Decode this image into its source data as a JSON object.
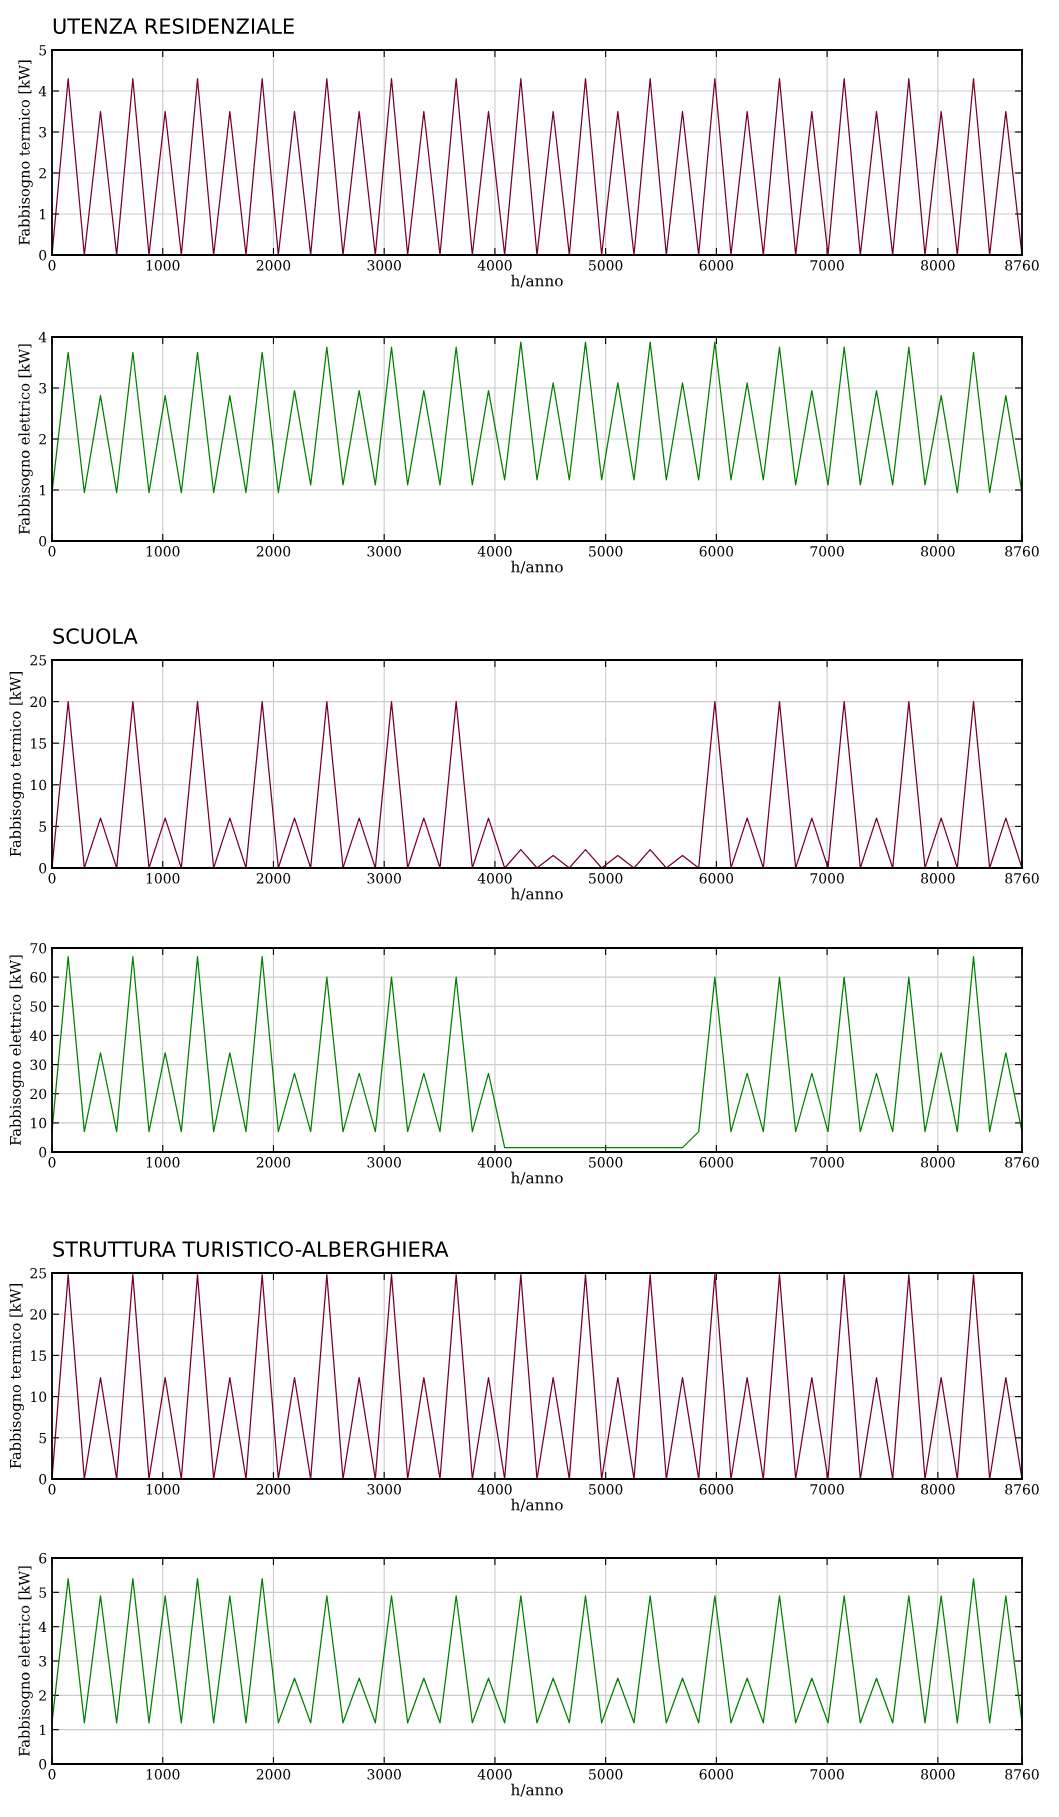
{
  "chart_data": [
    {
      "type": "line",
      "title": "UTENZA RESIDENZIALE",
      "xlabel": "h/anno",
      "ylabel": "Fabbisogno termico [kW]",
      "grid": true,
      "xlim": [
        0,
        8760
      ],
      "xticks": [
        0,
        1000,
        2000,
        3000,
        4000,
        5000,
        6000,
        7000,
        8000,
        8760
      ],
      "ylim": [
        0,
        5
      ],
      "yticks": [
        0,
        1,
        2,
        3,
        4,
        5
      ],
      "x": [
        0,
        146,
        292,
        438,
        584,
        730,
        876,
        1022,
        1168,
        1314,
        1460,
        1606,
        1752,
        1898,
        2044,
        2190,
        2336,
        2482,
        2628,
        2774,
        2920,
        3066,
        3212,
        3358,
        3504,
        3650,
        3796,
        3942,
        4088,
        4234,
        4380,
        4526,
        4672,
        4818,
        4964,
        5110,
        5256,
        5402,
        5548,
        5694,
        5840,
        5986,
        6132,
        6278,
        6424,
        6570,
        6716,
        6862,
        7008,
        7154,
        7300,
        7446,
        7592,
        7738,
        7884,
        8030,
        8176,
        8322,
        8468,
        8614,
        8760
      ],
      "series": [
        {
          "color": "#7a0020",
          "values": [
            0,
            4.3,
            0,
            3.5,
            0,
            4.3,
            0,
            3.5,
            0,
            4.3,
            0,
            3.5,
            0,
            4.3,
            0,
            3.5,
            0,
            4.3,
            0,
            3.5,
            0,
            4.3,
            0,
            3.5,
            0,
            4.3,
            0,
            3.5,
            0,
            4.3,
            0,
            3.5,
            0,
            4.3,
            0,
            3.5,
            0,
            4.3,
            0,
            3.5,
            0,
            4.3,
            0,
            3.5,
            0,
            4.3,
            0,
            3.5,
            0,
            4.3,
            0,
            3.5,
            0,
            4.3,
            0,
            3.5,
            0,
            4.3,
            0,
            3.5,
            0
          ]
        }
      ]
    },
    {
      "type": "line",
      "xlabel": "h/anno",
      "ylabel": "Fabbisogno elettrico [kW]",
      "grid": true,
      "xlim": [
        0,
        8760
      ],
      "xticks": [
        0,
        1000,
        2000,
        3000,
        4000,
        5000,
        6000,
        7000,
        8000,
        8760
      ],
      "ylim": [
        0,
        4
      ],
      "yticks": [
        0,
        1,
        2,
        3,
        4
      ],
      "x": [
        0,
        146,
        292,
        438,
        584,
        730,
        876,
        1022,
        1168,
        1314,
        1460,
        1606,
        1752,
        1898,
        2044,
        2190,
        2336,
        2482,
        2628,
        2774,
        2920,
        3066,
        3212,
        3358,
        3504,
        3650,
        3796,
        3942,
        4088,
        4234,
        4380,
        4526,
        4672,
        4818,
        4964,
        5110,
        5256,
        5402,
        5548,
        5694,
        5840,
        5986,
        6132,
        6278,
        6424,
        6570,
        6716,
        6862,
        7008,
        7154,
        7300,
        7446,
        7592,
        7738,
        7884,
        8030,
        8176,
        8322,
        8468,
        8614,
        8760
      ],
      "series": [
        {
          "color": "#008000",
          "values": [
            0.95,
            3.7,
            0.95,
            2.85,
            0.95,
            3.7,
            0.95,
            2.85,
            0.95,
            3.7,
            0.95,
            2.85,
            0.95,
            3.7,
            0.95,
            2.95,
            1.1,
            3.8,
            1.1,
            2.95,
            1.1,
            3.8,
            1.1,
            2.95,
            1.1,
            3.8,
            1.1,
            2.95,
            1.2,
            3.9,
            1.2,
            3.1,
            1.2,
            3.9,
            1.2,
            3.1,
            1.2,
            3.9,
            1.2,
            3.1,
            1.2,
            3.9,
            1.2,
            3.1,
            1.2,
            3.8,
            1.1,
            2.95,
            1.1,
            3.8,
            1.1,
            2.95,
            1.1,
            3.8,
            1.1,
            2.85,
            0.95,
            3.7,
            0.95,
            2.85,
            0.95
          ]
        }
      ]
    },
    {
      "type": "line",
      "title": "SCUOLA",
      "xlabel": "h/anno",
      "ylabel": "Fabbisogno termico [kW]",
      "grid": true,
      "xlim": [
        0,
        8760
      ],
      "xticks": [
        0,
        1000,
        2000,
        3000,
        4000,
        5000,
        6000,
        7000,
        8000,
        8760
      ],
      "ylim": [
        0,
        25
      ],
      "yticks": [
        0,
        5,
        10,
        15,
        20,
        25
      ],
      "x": [
        0,
        146,
        292,
        438,
        584,
        730,
        876,
        1022,
        1168,
        1314,
        1460,
        1606,
        1752,
        1898,
        2044,
        2190,
        2336,
        2482,
        2628,
        2774,
        2920,
        3066,
        3212,
        3358,
        3504,
        3650,
        3796,
        3942,
        4088,
        4234,
        4380,
        4526,
        4672,
        4818,
        4964,
        5110,
        5256,
        5402,
        5548,
        5694,
        5840,
        5986,
        6132,
        6278,
        6424,
        6570,
        6716,
        6862,
        7008,
        7154,
        7300,
        7446,
        7592,
        7738,
        7884,
        8030,
        8176,
        8322,
        8468,
        8614,
        8760
      ],
      "series": [
        {
          "color": "#7a0020",
          "values": [
            0,
            20,
            0,
            6,
            0,
            20,
            0,
            6,
            0,
            20,
            0,
            6,
            0,
            20,
            0,
            6,
            0,
            20,
            0,
            6,
            0,
            20,
            0,
            6,
            0,
            20,
            0,
            6,
            0,
            2.2,
            0,
            1.5,
            0,
            2.2,
            0,
            1.5,
            0,
            2.2,
            0,
            1.5,
            0,
            20,
            0,
            6,
            0,
            20,
            0,
            6,
            0,
            20,
            0,
            6,
            0,
            20,
            0,
            6,
            0,
            20,
            0,
            6,
            0
          ]
        }
      ]
    },
    {
      "type": "line",
      "xlabel": "h/anno",
      "ylabel": "Fabbisogno elettrico [kW]",
      "grid": true,
      "xlim": [
        0,
        8760
      ],
      "xticks": [
        0,
        1000,
        2000,
        3000,
        4000,
        5000,
        6000,
        7000,
        8000,
        8760
      ],
      "ylim": [
        0,
        70
      ],
      "yticks": [
        0,
        10,
        20,
        30,
        40,
        50,
        60,
        70
      ],
      "x": [
        0,
        146,
        292,
        438,
        584,
        730,
        876,
        1022,
        1168,
        1314,
        1460,
        1606,
        1752,
        1898,
        2044,
        2190,
        2336,
        2482,
        2628,
        2774,
        2920,
        3066,
        3212,
        3358,
        3504,
        3650,
        3796,
        3942,
        4088,
        4234,
        4380,
        4526,
        4672,
        4818,
        4964,
        5110,
        5256,
        5402,
        5548,
        5694,
        5840,
        5986,
        6132,
        6278,
        6424,
        6570,
        6716,
        6862,
        7008,
        7154,
        7300,
        7446,
        7592,
        7738,
        7884,
        8030,
        8176,
        8322,
        8468,
        8614,
        8760
      ],
      "series": [
        {
          "color": "#008000",
          "values": [
            7,
            67,
            7,
            34,
            7,
            67,
            7,
            34,
            7,
            67,
            7,
            34,
            7,
            67,
            7,
            27,
            7,
            60,
            7,
            27,
            7,
            60,
            7,
            27,
            7,
            60,
            7,
            27,
            1.5,
            1.5,
            1.5,
            1.5,
            1.5,
            1.5,
            1.5,
            1.5,
            1.5,
            1.5,
            1.5,
            1.5,
            7,
            60,
            7,
            27,
            7,
            60,
            7,
            27,
            7,
            60,
            7,
            27,
            7,
            60,
            7,
            34,
            7,
            67,
            7,
            34,
            7
          ]
        }
      ]
    },
    {
      "type": "line",
      "title": "STRUTTURA TURISTICO-ALBERGHIERA",
      "xlabel": "h/anno",
      "ylabel": "Fabbisogno termico [kW]",
      "grid": true,
      "xlim": [
        0,
        8760
      ],
      "xticks": [
        0,
        1000,
        2000,
        3000,
        4000,
        5000,
        6000,
        7000,
        8000,
        8760
      ],
      "ylim": [
        0,
        25
      ],
      "yticks": [
        0,
        5,
        10,
        15,
        20,
        25
      ],
      "x": [
        0,
        146,
        292,
        438,
        584,
        730,
        876,
        1022,
        1168,
        1314,
        1460,
        1606,
        1752,
        1898,
        2044,
        2190,
        2336,
        2482,
        2628,
        2774,
        2920,
        3066,
        3212,
        3358,
        3504,
        3650,
        3796,
        3942,
        4088,
        4234,
        4380,
        4526,
        4672,
        4818,
        4964,
        5110,
        5256,
        5402,
        5548,
        5694,
        5840,
        5986,
        6132,
        6278,
        6424,
        6570,
        6716,
        6862,
        7008,
        7154,
        7300,
        7446,
        7592,
        7738,
        7884,
        8030,
        8176,
        8322,
        8468,
        8614,
        8760
      ],
      "series": [
        {
          "color": "#7a0020",
          "values": [
            0,
            24.8,
            0,
            12.3,
            0,
            24.8,
            0,
            12.3,
            0,
            24.8,
            0,
            12.3,
            0,
            24.8,
            0,
            12.3,
            0,
            24.8,
            0,
            12.3,
            0,
            24.8,
            0,
            12.3,
            0,
            24.8,
            0,
            12.3,
            0,
            24.8,
            0,
            12.3,
            0,
            24.8,
            0,
            12.3,
            0,
            24.8,
            0,
            12.3,
            0,
            24.8,
            0,
            12.3,
            0,
            24.8,
            0,
            12.3,
            0,
            24.8,
            0,
            12.3,
            0,
            24.8,
            0,
            12.3,
            0,
            24.8,
            0,
            12.3,
            0
          ]
        }
      ]
    },
    {
      "type": "line",
      "xlabel": "h/anno",
      "ylabel": "Fabbisogno elettrico [kW]",
      "grid": true,
      "xlim": [
        0,
        8760
      ],
      "xticks": [
        0,
        1000,
        2000,
        3000,
        4000,
        5000,
        6000,
        7000,
        8000,
        8760
      ],
      "ylim": [
        0,
        6
      ],
      "yticks": [
        0,
        1,
        2,
        3,
        4,
        5,
        6
      ],
      "x": [
        0,
        146,
        292,
        438,
        584,
        730,
        876,
        1022,
        1168,
        1314,
        1460,
        1606,
        1752,
        1898,
        2044,
        2190,
        2336,
        2482,
        2628,
        2774,
        2920,
        3066,
        3212,
        3358,
        3504,
        3650,
        3796,
        3942,
        4088,
        4234,
        4380,
        4526,
        4672,
        4818,
        4964,
        5110,
        5256,
        5402,
        5548,
        5694,
        5840,
        5986,
        6132,
        6278,
        6424,
        6570,
        6716,
        6862,
        7008,
        7154,
        7300,
        7446,
        7592,
        7738,
        7884,
        8030,
        8176,
        8322,
        8468,
        8614,
        8760
      ],
      "series": [
        {
          "color": "#008000",
          "values": [
            1.2,
            5.4,
            1.2,
            4.9,
            1.2,
            5.4,
            1.2,
            4.9,
            1.2,
            5.4,
            1.2,
            4.9,
            1.2,
            5.4,
            1.2,
            2.5,
            1.2,
            4.9,
            1.2,
            2.5,
            1.2,
            4.9,
            1.2,
            2.5,
            1.2,
            4.9,
            1.2,
            2.5,
            1.2,
            4.9,
            1.2,
            2.5,
            1.2,
            4.9,
            1.2,
            2.5,
            1.2,
            4.9,
            1.2,
            2.5,
            1.2,
            4.9,
            1.2,
            2.5,
            1.2,
            4.9,
            1.2,
            2.5,
            1.2,
            4.9,
            1.2,
            2.5,
            1.2,
            4.9,
            1.2,
            4.9,
            1.2,
            5.4,
            1.2,
            4.9,
            1.2
          ]
        }
      ]
    }
  ]
}
